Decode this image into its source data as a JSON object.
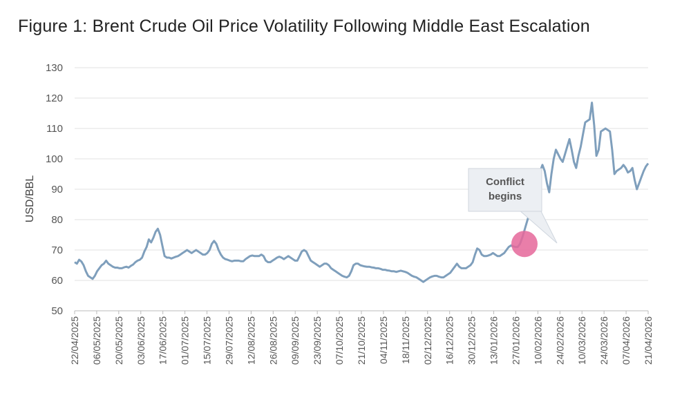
{
  "page": {
    "title": "Figure 1: Brent Crude Oil Price Volatility Following Middle East Escalation"
  },
  "chart_data": {
    "type": "line",
    "title": "Figure 1: Brent Crude Oil Price Volatility Following Middle East Escalation",
    "xlabel": "",
    "ylabel": "USD/BBL",
    "ylim": [
      50,
      130
    ],
    "yticks": [
      50,
      60,
      70,
      80,
      90,
      100,
      110,
      120,
      130
    ],
    "grid": true,
    "series_color": "#7f9fbc",
    "x_start": "22/04/2025",
    "x_end": "21/04/2026",
    "xtick_labels": [
      "22/04/2025",
      "06/05/2025",
      "20/05/2025",
      "03/06/2025",
      "17/06/2025",
      "01/07/2025",
      "15/07/2025",
      "29/07/2025",
      "12/08/2025",
      "26/08/2025",
      "09/09/2025",
      "23/09/2025",
      "07/10/2025",
      "21/10/2025",
      "04/11/2025",
      "18/11/2025",
      "02/12/2025",
      "16/12/2025",
      "30/12/2025",
      "13/01/2026",
      "27/01/2026",
      "10/02/2026",
      "24/02/2026",
      "10/03/2026",
      "24/03/2026",
      "07/04/2026",
      "21/04/2026"
    ],
    "series": [
      {
        "name": "Brent Crude",
        "points": [
          [
            0,
            66
          ],
          [
            1,
            65.5
          ],
          [
            2,
            66.8
          ],
          [
            3,
            66.2
          ],
          [
            4,
            65
          ],
          [
            5,
            63
          ],
          [
            6,
            61.5
          ],
          [
            7,
            61
          ],
          [
            8,
            60.5
          ],
          [
            9,
            61.5
          ],
          [
            10,
            63
          ],
          [
            11,
            64
          ],
          [
            12,
            65
          ],
          [
            13,
            65.5
          ],
          [
            14,
            66.5
          ],
          [
            15,
            65.5
          ],
          [
            16,
            65
          ],
          [
            17,
            64.5
          ],
          [
            18,
            64.2
          ],
          [
            19,
            64.2
          ],
          [
            20,
            64
          ],
          [
            21,
            64
          ],
          [
            22,
            64.3
          ],
          [
            23,
            64.5
          ],
          [
            24,
            64.2
          ],
          [
            25,
            64.8
          ],
          [
            26,
            65.2
          ],
          [
            27,
            66
          ],
          [
            28,
            66.5
          ],
          [
            29,
            66.8
          ],
          [
            30,
            67.5
          ],
          [
            31,
            69.5
          ],
          [
            32,
            71
          ],
          [
            33,
            73.5
          ],
          [
            34,
            72.5
          ],
          [
            35,
            74
          ],
          [
            36,
            76
          ],
          [
            37,
            77
          ],
          [
            38,
            75
          ],
          [
            39,
            71.5
          ],
          [
            40,
            68
          ],
          [
            41,
            67.5
          ],
          [
            42,
            67.5
          ],
          [
            43,
            67.2
          ],
          [
            44,
            67.5
          ],
          [
            45,
            67.8
          ],
          [
            46,
            68
          ],
          [
            47,
            68.5
          ],
          [
            48,
            69
          ],
          [
            49,
            69.5
          ],
          [
            50,
            70
          ],
          [
            51,
            69.5
          ],
          [
            52,
            69
          ],
          [
            53,
            69.5
          ],
          [
            54,
            70
          ],
          [
            55,
            69.5
          ],
          [
            56,
            69
          ],
          [
            57,
            68.5
          ],
          [
            58,
            68.5
          ],
          [
            59,
            69
          ],
          [
            60,
            70
          ],
          [
            61,
            72
          ],
          [
            62,
            73
          ],
          [
            63,
            72
          ],
          [
            64,
            70
          ],
          [
            65,
            68.5
          ],
          [
            66,
            67.5
          ],
          [
            67,
            67
          ],
          [
            68,
            66.8
          ],
          [
            69,
            66.5
          ],
          [
            70,
            66.3
          ],
          [
            71,
            66.5
          ],
          [
            72,
            66.5
          ],
          [
            73,
            66.5
          ],
          [
            74,
            66.3
          ],
          [
            75,
            66.3
          ],
          [
            76,
            67
          ],
          [
            77,
            67.5
          ],
          [
            78,
            68
          ],
          [
            79,
            68.2
          ],
          [
            80,
            68
          ],
          [
            81,
            68
          ],
          [
            82,
            68
          ],
          [
            83,
            68.5
          ],
          [
            84,
            68
          ],
          [
            85,
            66.5
          ],
          [
            86,
            66
          ],
          [
            87,
            66
          ],
          [
            88,
            66.5
          ],
          [
            89,
            67
          ],
          [
            90,
            67.5
          ],
          [
            91,
            67.8
          ],
          [
            92,
            67.5
          ],
          [
            93,
            67
          ],
          [
            94,
            67.5
          ],
          [
            95,
            68
          ],
          [
            96,
            67.5
          ],
          [
            97,
            67
          ],
          [
            98,
            66.5
          ],
          [
            99,
            66.5
          ],
          [
            100,
            68
          ],
          [
            101,
            69.5
          ],
          [
            102,
            70
          ],
          [
            103,
            69.5
          ],
          [
            104,
            68
          ],
          [
            105,
            66.5
          ],
          [
            106,
            66
          ],
          [
            107,
            65.5
          ],
          [
            108,
            65
          ],
          [
            109,
            64.5
          ],
          [
            110,
            65
          ],
          [
            111,
            65.5
          ],
          [
            112,
            65.5
          ],
          [
            113,
            65
          ],
          [
            114,
            64
          ],
          [
            115,
            63.5
          ],
          [
            116,
            63
          ],
          [
            117,
            62.5
          ],
          [
            118,
            62
          ],
          [
            119,
            61.5
          ],
          [
            120,
            61.2
          ],
          [
            121,
            61
          ],
          [
            122,
            61.5
          ],
          [
            123,
            63
          ],
          [
            124,
            65
          ],
          [
            125,
            65.5
          ],
          [
            126,
            65.5
          ],
          [
            127,
            65
          ],
          [
            128,
            64.8
          ],
          [
            129,
            64.6
          ],
          [
            130,
            64.5
          ],
          [
            131,
            64.5
          ],
          [
            132,
            64.3
          ],
          [
            133,
            64.2
          ],
          [
            134,
            64
          ],
          [
            135,
            64
          ],
          [
            136,
            63.8
          ],
          [
            137,
            63.5
          ],
          [
            138,
            63.5
          ],
          [
            139,
            63.3
          ],
          [
            140,
            63.2
          ],
          [
            141,
            63
          ],
          [
            142,
            63
          ],
          [
            143,
            62.8
          ],
          [
            144,
            63
          ],
          [
            145,
            63.2
          ],
          [
            146,
            63
          ],
          [
            147,
            62.8
          ],
          [
            148,
            62.5
          ],
          [
            149,
            62
          ],
          [
            150,
            61.5
          ],
          [
            151,
            61.2
          ],
          [
            152,
            61
          ],
          [
            153,
            60.5
          ],
          [
            154,
            60
          ],
          [
            155,
            59.5
          ],
          [
            156,
            60
          ],
          [
            157,
            60.5
          ],
          [
            158,
            61
          ],
          [
            159,
            61.3
          ],
          [
            160,
            61.5
          ],
          [
            161,
            61.5
          ],
          [
            162,
            61.2
          ],
          [
            163,
            61
          ],
          [
            164,
            61
          ],
          [
            165,
            61.5
          ],
          [
            166,
            62
          ],
          [
            167,
            62.5
          ],
          [
            168,
            63.5
          ],
          [
            169,
            64.5
          ],
          [
            170,
            65.5
          ],
          [
            171,
            64.5
          ],
          [
            172,
            64
          ],
          [
            173,
            64
          ],
          [
            174,
            64
          ],
          [
            175,
            64.5
          ],
          [
            176,
            65
          ],
          [
            177,
            66
          ],
          [
            178,
            68.5
          ],
          [
            179,
            70.5
          ],
          [
            180,
            70
          ],
          [
            181,
            68.5
          ],
          [
            182,
            68
          ],
          [
            183,
            68
          ],
          [
            184,
            68.2
          ],
          [
            185,
            68.5
          ],
          [
            186,
            69
          ],
          [
            187,
            68.5
          ],
          [
            188,
            68
          ],
          [
            189,
            68
          ],
          [
            190,
            68.5
          ],
          [
            191,
            69
          ],
          [
            192,
            70
          ],
          [
            193,
            71
          ],
          [
            194,
            71.5
          ],
          [
            195,
            71.2
          ],
          [
            196,
            71
          ],
          [
            197,
            71
          ],
          [
            198,
            72
          ],
          [
            199,
            74
          ],
          [
            200,
            76.5
          ],
          [
            201,
            79
          ],
          [
            202,
            81.5
          ],
          [
            203,
            85
          ],
          [
            204,
            88
          ],
          [
            205,
            91
          ],
          [
            206,
            94
          ],
          [
            207,
            96
          ],
          [
            208,
            98
          ],
          [
            209,
            96
          ],
          [
            210,
            92
          ],
          [
            211,
            89
          ],
          [
            212,
            95
          ],
          [
            213,
            100
          ],
          [
            214,
            103
          ],
          [
            215,
            101.5
          ],
          [
            216,
            100
          ],
          [
            217,
            99
          ],
          [
            218,
            101.5
          ],
          [
            219,
            104
          ],
          [
            220,
            106.5
          ],
          [
            221,
            103
          ],
          [
            222,
            99
          ],
          [
            223,
            97
          ],
          [
            224,
            101
          ],
          [
            225,
            104
          ],
          [
            226,
            108
          ],
          [
            227,
            112
          ],
          [
            228,
            112.5
          ],
          [
            229,
            113
          ],
          [
            230,
            118.5
          ],
          [
            231,
            111
          ],
          [
            232,
            101
          ],
          [
            233,
            103
          ],
          [
            234,
            109
          ],
          [
            235,
            109.5
          ],
          [
            236,
            110
          ],
          [
            237,
            109.5
          ],
          [
            238,
            109
          ],
          [
            239,
            103
          ],
          [
            240,
            95
          ],
          [
            241,
            96
          ],
          [
            242,
            96.5
          ],
          [
            243,
            97
          ],
          [
            244,
            98
          ],
          [
            245,
            97
          ],
          [
            246,
            95.5
          ],
          [
            247,
            96
          ],
          [
            248,
            97
          ],
          [
            249,
            93
          ],
          [
            250,
            90
          ],
          [
            251,
            92
          ],
          [
            252,
            94
          ],
          [
            253,
            96
          ],
          [
            254,
            97.5
          ],
          [
            255,
            98.5
          ]
        ]
      }
    ],
    "annotation": {
      "text_line1": "Conflict",
      "text_line2": "begins",
      "x_index": 200,
      "y": 72,
      "marker_color": "#e5679a"
    }
  }
}
